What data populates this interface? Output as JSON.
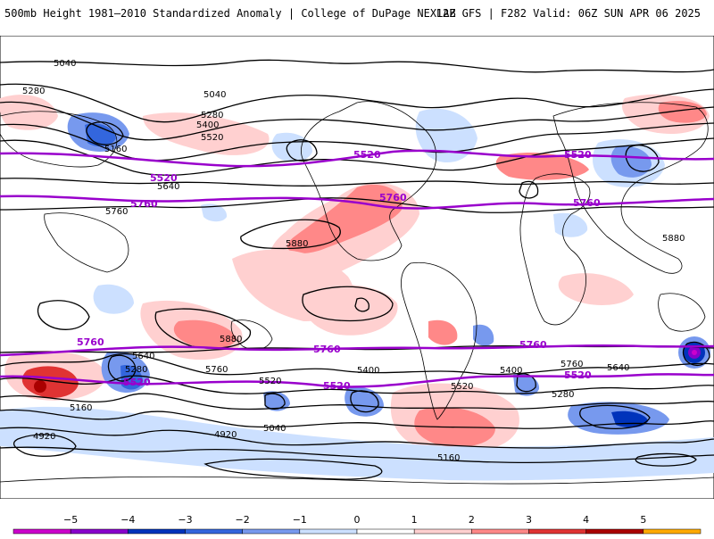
{
  "header": {
    "title_left": "500mb Height 1981–2010 Standardized Anomaly | College of DuPage NEXLAB",
    "title_right": "12Z GFS | F282 Valid: 06Z SUN APR 06 2025"
  },
  "map": {
    "black_contour_labels": [
      "5040",
      "5280",
      "5040",
      "5160",
      "5280",
      "5400",
      "5520",
      "5640",
      "5760",
      "5880",
      "4920",
      "5160",
      "5280",
      "5400",
      "5520",
      "5640",
      "5760",
      "5880",
      "4920",
      "5040",
      "5160",
      "5280",
      "5400",
      "5520",
      "5640",
      "5760",
      "5880"
    ],
    "purple_contours": [
      "5520",
      "5760"
    ],
    "colors": {
      "purple_contour": "#9900cc",
      "black_contour": "#000000",
      "land": "#000000"
    }
  },
  "colorbar": {
    "ticks": [
      "−5",
      "−4",
      "−3",
      "−2",
      "−1",
      "0",
      "1",
      "2",
      "3",
      "4",
      "5"
    ],
    "colors": [
      "#cc00cc",
      "#8800cc",
      "#0033bb",
      "#3366dd",
      "#7799ee",
      "#cce0ff",
      "#ffffff",
      "#ffd0d0",
      "#ff8888",
      "#e03333",
      "#aa0000",
      "#ffaa00"
    ]
  }
}
